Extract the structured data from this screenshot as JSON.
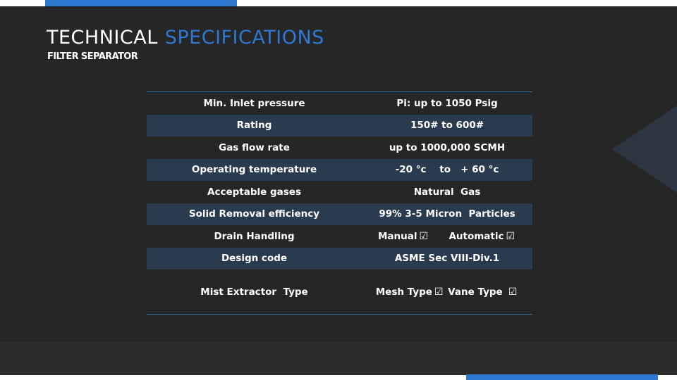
{
  "title": {
    "word1": "TECHNICAL",
    "word2": "SPECIFICATIONS"
  },
  "subtitle": "FILTER SEPARATOR",
  "colors": {
    "accent": "#2e78d2",
    "background": "#262626",
    "row_alt": "#2a3b4f"
  },
  "table": {
    "rows": [
      {
        "parameter": "Min. Inlet pressure",
        "value": "Pi: up to 1050 Psig"
      },
      {
        "parameter": "Rating",
        "value": "150# to 600#"
      },
      {
        "parameter": "Gas flow rate",
        "value": "up to 1000,000 SCMH"
      },
      {
        "parameter": "Operating temperature",
        "value": "-20 °c    to   + 60 °c"
      },
      {
        "parameter": "Acceptable gases",
        "value": "Natural  Gas"
      },
      {
        "parameter": "Solid Removal efficiency",
        "value": "99% 3-5 Micron  Particles"
      },
      {
        "parameter": "Drain Handling",
        "value_a": "Manual",
        "value_b": "Automatic"
      },
      {
        "parameter": "Design code",
        "value": "ASME Sec VIII-Div.1"
      },
      {
        "parameter": "Mist Extractor  Type",
        "value_a": "Mesh Type",
        "value_b": "Vane Type"
      }
    ],
    "check_glyph": "☑"
  }
}
